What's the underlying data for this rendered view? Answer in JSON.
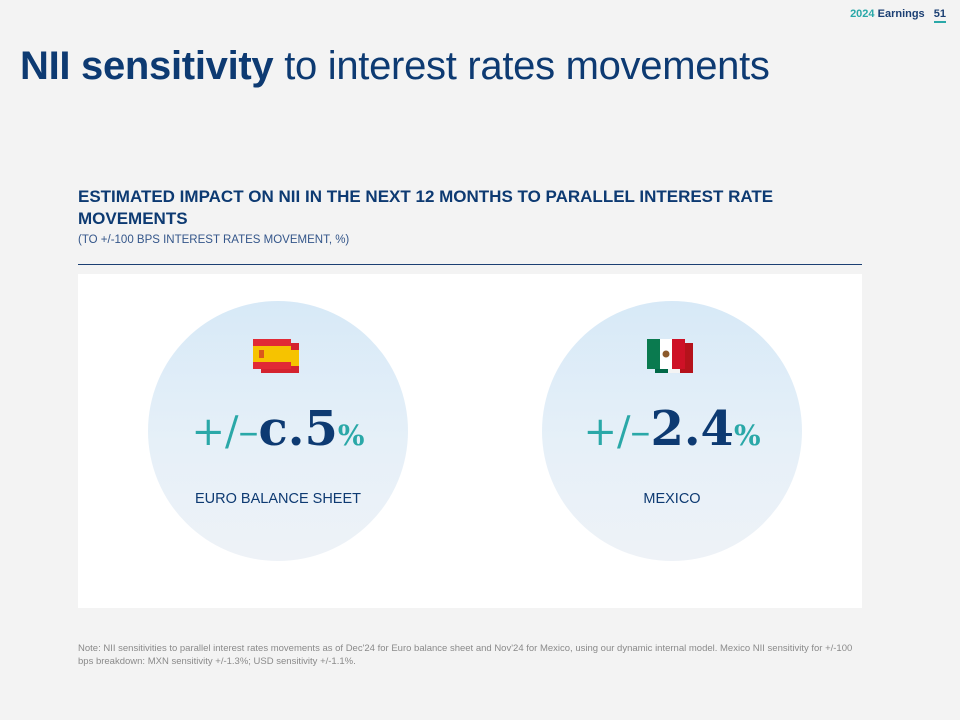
{
  "header": {
    "year": "2024",
    "report": "Earnings",
    "page": "51"
  },
  "title": {
    "bold": "NII sensitivity",
    "rest": " to interest rates movements"
  },
  "section": {
    "heading": "ESTIMATED IMPACT ON NII IN THE NEXT 12 MONTHS TO PARALLEL INTEREST RATE MOVEMENTS",
    "subheading": "(TO +/-100 BPS INTEREST RATES MOVEMENT, %)"
  },
  "cards": {
    "spain": {
      "prefix": "+/–",
      "value": "c.5",
      "unit": "%",
      "label": "EURO BALANCE SHEET",
      "flag_icon": "spain-flag-icon"
    },
    "mexico": {
      "prefix": "+/–",
      "value": "2.4",
      "unit": "%",
      "label": "MEXICO",
      "flag_icon": "mexico-flag-icon"
    }
  },
  "note": "Note: NII sensitivities to parallel interest rates movements as of Dec'24 for Euro balance sheet and Nov'24 for Mexico, using our dynamic internal model. Mexico NII sensitivity for +/-100 bps breakdown: MXN sensitivity +/-1.3%; USD sensitivity +/-1.1%.",
  "colors": {
    "navy": "#0d3a72",
    "teal": "#2aa8a8",
    "background": "#f3f3f3"
  }
}
